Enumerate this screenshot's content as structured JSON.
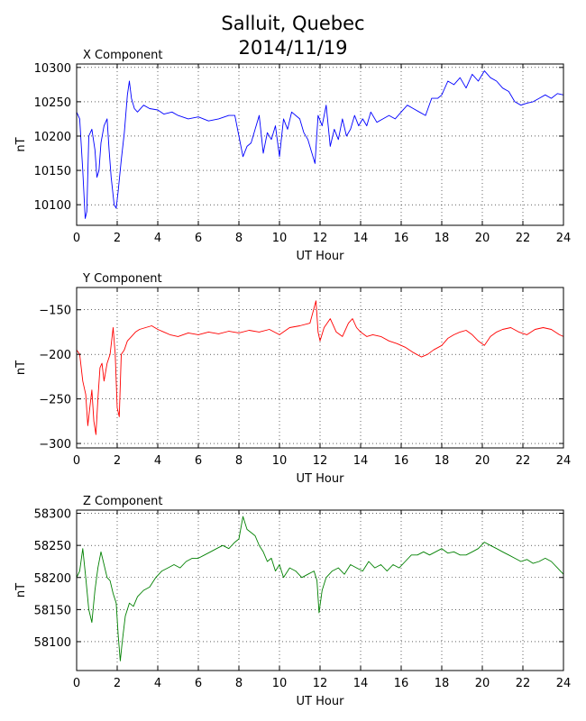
{
  "figure": {
    "title_line1": "Salluit, Quebec",
    "title_line2": "2014/11/19"
  },
  "chart_data": [
    {
      "type": "line",
      "title": "X Component",
      "xlabel": "UT Hour",
      "ylabel": "nT",
      "xlim": [
        0,
        24
      ],
      "ylim": [
        10070,
        10305
      ],
      "xticks": [
        0,
        2,
        4,
        6,
        8,
        10,
        12,
        14,
        16,
        18,
        20,
        22,
        24
      ],
      "yticks": [
        10100,
        10150,
        10200,
        10250,
        10300
      ],
      "grid": true,
      "color": "#0000ff",
      "series": [
        {
          "x": [
            0,
            0.15,
            0.3,
            0.42,
            0.5,
            0.6,
            0.75,
            0.9,
            1.0,
            1.1,
            1.2,
            1.35,
            1.5,
            1.6,
            1.7,
            1.85,
            1.95,
            2.05,
            2.2,
            2.35,
            2.5,
            2.6,
            2.7,
            2.85,
            3.0,
            3.3,
            3.6,
            4.0,
            4.3,
            4.7,
            5.0,
            5.5,
            6.0,
            6.5,
            7.0,
            7.5,
            7.8,
            8.0,
            8.2,
            8.4,
            8.6,
            8.8,
            9.0,
            9.2,
            9.4,
            9.6,
            9.8,
            10.0,
            10.2,
            10.4,
            10.6,
            10.8,
            11.0,
            11.2,
            11.4,
            11.6,
            11.75,
            11.9,
            12.1,
            12.3,
            12.5,
            12.7,
            12.9,
            13.1,
            13.3,
            13.5,
            13.7,
            13.9,
            14.1,
            14.3,
            14.5,
            14.8,
            15.1,
            15.4,
            15.7,
            16.0,
            16.3,
            16.6,
            16.9,
            17.2,
            17.5,
            17.8,
            18.0,
            18.3,
            18.6,
            18.9,
            19.2,
            19.5,
            19.8,
            20.1,
            20.4,
            20.7,
            21.0,
            21.3,
            21.6,
            21.9,
            22.2,
            22.5,
            22.8,
            23.1,
            23.4,
            23.7,
            24.0
          ],
          "y": [
            10235,
            10225,
            10150,
            10080,
            10090,
            10200,
            10210,
            10180,
            10140,
            10150,
            10190,
            10215,
            10225,
            10180,
            10140,
            10100,
            10095,
            10120,
            10165,
            10205,
            10260,
            10280,
            10255,
            10240,
            10235,
            10245,
            10240,
            10238,
            10232,
            10235,
            10230,
            10225,
            10228,
            10222,
            10225,
            10230,
            10230,
            10200,
            10170,
            10185,
            10190,
            10210,
            10230,
            10175,
            10205,
            10195,
            10215,
            10170,
            10225,
            10210,
            10235,
            10230,
            10225,
            10205,
            10195,
            10175,
            10160,
            10230,
            10215,
            10245,
            10185,
            10210,
            10195,
            10225,
            10200,
            10210,
            10230,
            10215,
            10225,
            10215,
            10235,
            10220,
            10225,
            10230,
            10225,
            10235,
            10245,
            10240,
            10235,
            10230,
            10255,
            10255,
            10260,
            10280,
            10275,
            10285,
            10270,
            10290,
            10280,
            10295,
            10285,
            10280,
            10270,
            10265,
            10250,
            10245,
            10248,
            10250,
            10255,
            10260,
            10255,
            10262,
            10260
          ]
        }
      ]
    },
    {
      "type": "line",
      "title": "Y Component",
      "xlabel": "UT Hour",
      "ylabel": "nT",
      "xlim": [
        0,
        24
      ],
      "ylim": [
        -305,
        -125
      ],
      "xticks": [
        0,
        2,
        4,
        6,
        8,
        10,
        12,
        14,
        16,
        18,
        20,
        22,
        24
      ],
      "yticks": [
        -150,
        -200,
        -250,
        -300
      ],
      "grid": true,
      "color": "#ff0000",
      "series": [
        {
          "x": [
            0,
            0.15,
            0.3,
            0.45,
            0.55,
            0.65,
            0.75,
            0.85,
            0.95,
            1.05,
            1.15,
            1.25,
            1.35,
            1.5,
            1.65,
            1.8,
            1.9,
            2.0,
            2.1,
            2.2,
            2.35,
            2.5,
            2.7,
            2.9,
            3.1,
            3.4,
            3.7,
            4.0,
            4.3,
            4.6,
            5.0,
            5.5,
            6.0,
            6.5,
            7.0,
            7.5,
            8.0,
            8.5,
            9.0,
            9.5,
            10.0,
            10.5,
            11.0,
            11.5,
            11.8,
            11.9,
            12.0,
            12.2,
            12.5,
            12.8,
            13.1,
            13.4,
            13.6,
            13.8,
            14.0,
            14.3,
            14.6,
            15.0,
            15.4,
            15.8,
            16.2,
            16.6,
            17.0,
            17.3,
            17.6,
            18.0,
            18.3,
            18.6,
            18.9,
            19.2,
            19.5,
            19.8,
            20.1,
            20.4,
            20.7,
            21.0,
            21.4,
            21.8,
            22.2,
            22.6,
            23.0,
            23.4,
            23.8,
            24.0
          ],
          "y": [
            -195,
            -200,
            -230,
            -245,
            -280,
            -260,
            -240,
            -275,
            -290,
            -250,
            -215,
            -210,
            -230,
            -210,
            -200,
            -170,
            -200,
            -260,
            -270,
            -200,
            -195,
            -185,
            -180,
            -175,
            -172,
            -170,
            -168,
            -172,
            -175,
            -178,
            -180,
            -176,
            -178,
            -175,
            -177,
            -174,
            -176,
            -173,
            -175,
            -172,
            -178,
            -170,
            -168,
            -165,
            -140,
            -175,
            -185,
            -170,
            -160,
            -175,
            -180,
            -165,
            -160,
            -170,
            -175,
            -180,
            -178,
            -180,
            -185,
            -188,
            -192,
            -198,
            -203,
            -200,
            -195,
            -190,
            -182,
            -178,
            -175,
            -173,
            -178,
            -185,
            -190,
            -180,
            -175,
            -172,
            -170,
            -175,
            -178,
            -172,
            -170,
            -172,
            -178,
            -180
          ]
        }
      ]
    },
    {
      "type": "line",
      "title": "Z Component",
      "xlabel": "UT Hour",
      "ylabel": "nT",
      "xlim": [
        0,
        24
      ],
      "ylim": [
        58055,
        58305
      ],
      "xticks": [
        0,
        2,
        4,
        6,
        8,
        10,
        12,
        14,
        16,
        18,
        20,
        22,
        24
      ],
      "yticks": [
        58100,
        58150,
        58200,
        58250,
        58300
      ],
      "grid": true,
      "color": "#008000",
      "series": [
        {
          "x": [
            0,
            0.15,
            0.3,
            0.45,
            0.6,
            0.75,
            0.9,
            1.05,
            1.2,
            1.35,
            1.5,
            1.65,
            1.8,
            1.95,
            2.05,
            2.15,
            2.25,
            2.4,
            2.6,
            2.8,
            3.0,
            3.3,
            3.6,
            3.9,
            4.2,
            4.5,
            4.8,
            5.1,
            5.4,
            5.7,
            6.0,
            6.3,
            6.6,
            6.9,
            7.2,
            7.5,
            7.8,
            8.0,
            8.2,
            8.4,
            8.6,
            8.8,
            9.0,
            9.2,
            9.4,
            9.6,
            9.8,
            10.0,
            10.2,
            10.5,
            10.8,
            11.1,
            11.4,
            11.7,
            11.85,
            11.95,
            12.1,
            12.3,
            12.6,
            12.9,
            13.2,
            13.5,
            13.8,
            14.1,
            14.4,
            14.7,
            15.0,
            15.3,
            15.6,
            15.9,
            16.2,
            16.5,
            16.8,
            17.1,
            17.4,
            17.7,
            18.0,
            18.3,
            18.6,
            18.9,
            19.2,
            19.5,
            19.8,
            20.1,
            20.4,
            20.7,
            21.0,
            21.3,
            21.6,
            21.9,
            22.2,
            22.5,
            22.8,
            23.1,
            23.4,
            23.7,
            24.0
          ],
          "y": [
            58200,
            58210,
            58245,
            58200,
            58150,
            58130,
            58180,
            58215,
            58240,
            58220,
            58200,
            58195,
            58175,
            58160,
            58110,
            58070,
            58100,
            58140,
            58160,
            58155,
            58170,
            58180,
            58185,
            58200,
            58210,
            58215,
            58220,
            58215,
            58225,
            58230,
            58230,
            58235,
            58240,
            58245,
            58250,
            58245,
            58255,
            58260,
            58295,
            58275,
            58270,
            58265,
            58250,
            58240,
            58225,
            58230,
            58210,
            58220,
            58200,
            58215,
            58210,
            58200,
            58205,
            58210,
            58195,
            58145,
            58180,
            58200,
            58210,
            58215,
            58205,
            58220,
            58215,
            58210,
            58225,
            58215,
            58220,
            58210,
            58220,
            58215,
            58225,
            58235,
            58235,
            58240,
            58235,
            58240,
            58245,
            58238,
            58240,
            58235,
            58235,
            58240,
            58245,
            58255,
            58250,
            58245,
            58240,
            58235,
            58230,
            58225,
            58228,
            58222,
            58225,
            58230,
            58225,
            58215,
            58205
          ]
        }
      ]
    }
  ]
}
